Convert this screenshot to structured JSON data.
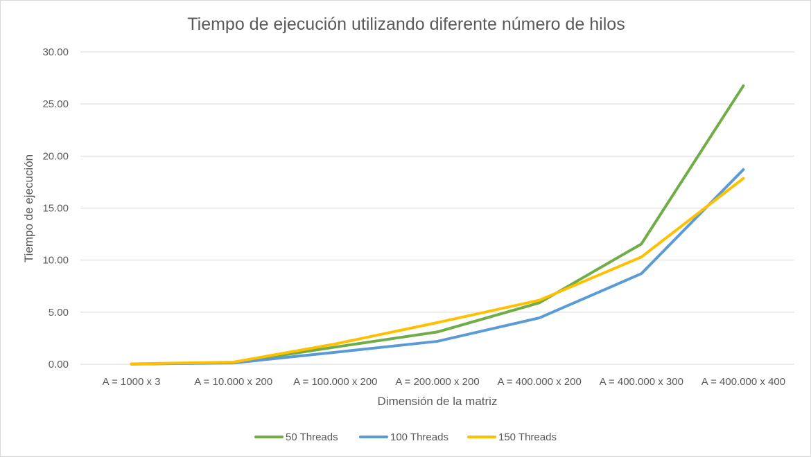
{
  "chart_data": {
    "type": "line",
    "title": "Tiempo de ejecución utilizando diferente número de hilos",
    "xlabel": "Dimensión de la matriz",
    "ylabel": "Tiempo de ejecución",
    "categories": [
      "A = 1000 x 3",
      "A = 10.000 x 200",
      "A = 100.000 x 200",
      "A = 200.000 x 200",
      "A = 400.000 x 200",
      "A = 400.000 x 300",
      "A = 400.000 x 400"
    ],
    "ylim": [
      0,
      30
    ],
    "yticks": [
      "0.00",
      "5.00",
      "10.00",
      "15.00",
      "20.00",
      "25.00",
      "30.00"
    ],
    "grid": true,
    "legend_position": "bottom",
    "series": [
      {
        "name": "50 Threads",
        "color": "#70ad47",
        "values": [
          0.02,
          0.15,
          1.65,
          3.1,
          5.9,
          11.55,
          26.75
        ]
      },
      {
        "name": "100 Threads",
        "color": "#5b9bd5",
        "values": [
          0.02,
          0.12,
          1.15,
          2.2,
          4.45,
          8.7,
          18.7
        ]
      },
      {
        "name": "150 Threads",
        "color": "#ffc000",
        "values": [
          0.03,
          0.2,
          1.95,
          4.0,
          6.15,
          10.3,
          17.85
        ]
      }
    ]
  }
}
